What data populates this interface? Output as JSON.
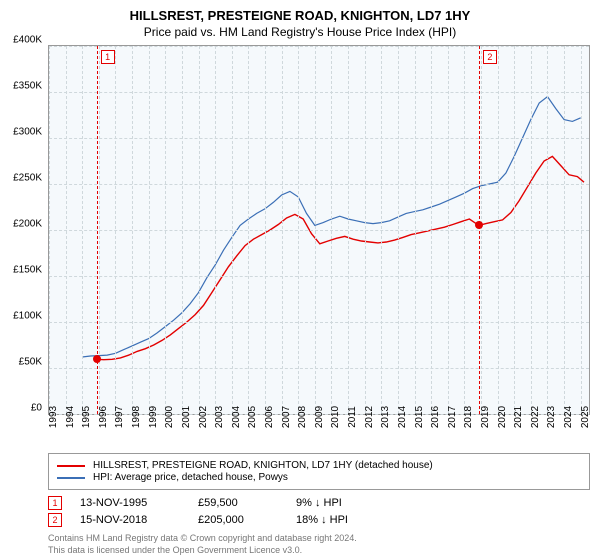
{
  "titles": {
    "line1": "HILLSREST, PRESTEIGNE ROAD, KNIGHTON, LD7 1HY",
    "line2": "Price paid vs. HM Land Registry's House Price Index (HPI)"
  },
  "chart": {
    "type": "line",
    "background_color": "#f5f9fc",
    "grid_color": "#cfd8dc",
    "border_color": "#999999",
    "ylim": [
      0,
      400000
    ],
    "yticks": [
      0,
      50000,
      100000,
      150000,
      200000,
      250000,
      300000,
      350000,
      400000
    ],
    "ytick_labels": [
      "£0",
      "£50K",
      "£100K",
      "£150K",
      "£200K",
      "£250K",
      "£300K",
      "£350K",
      "£400K"
    ],
    "xlim": [
      1993,
      2025.5
    ],
    "xticks": [
      1993,
      1994,
      1995,
      1996,
      1997,
      1998,
      1999,
      2000,
      2001,
      2002,
      2003,
      2004,
      2005,
      2006,
      2007,
      2008,
      2009,
      2010,
      2011,
      2012,
      2013,
      2014,
      2015,
      2016,
      2017,
      2018,
      2019,
      2020,
      2021,
      2022,
      2023,
      2024,
      2025
    ],
    "axis_fontsize": 10,
    "title_fontsize": 13,
    "series": [
      {
        "id": "hpi",
        "label": "HPI: Average price, detached house, Powys",
        "color": "#3b6fb6",
        "line_width": 1.2,
        "points": [
          [
            1995.0,
            62000
          ],
          [
            1995.5,
            63000
          ],
          [
            1996.0,
            63500
          ],
          [
            1996.5,
            64000
          ],
          [
            1997.0,
            66000
          ],
          [
            1997.5,
            70000
          ],
          [
            1998.0,
            74000
          ],
          [
            1998.5,
            78000
          ],
          [
            1999.0,
            82000
          ],
          [
            1999.5,
            88000
          ],
          [
            2000.0,
            95000
          ],
          [
            2000.5,
            102000
          ],
          [
            2001.0,
            110000
          ],
          [
            2001.5,
            120000
          ],
          [
            2002.0,
            132000
          ],
          [
            2002.5,
            148000
          ],
          [
            2003.0,
            162000
          ],
          [
            2003.5,
            178000
          ],
          [
            2004.0,
            192000
          ],
          [
            2004.5,
            205000
          ],
          [
            2005.0,
            212000
          ],
          [
            2005.5,
            218000
          ],
          [
            2006.0,
            223000
          ],
          [
            2006.5,
            230000
          ],
          [
            2007.0,
            238000
          ],
          [
            2007.5,
            242000
          ],
          [
            2008.0,
            236000
          ],
          [
            2008.5,
            218000
          ],
          [
            2009.0,
            205000
          ],
          [
            2009.5,
            208000
          ],
          [
            2010.0,
            212000
          ],
          [
            2010.5,
            215000
          ],
          [
            2011.0,
            212000
          ],
          [
            2011.5,
            210000
          ],
          [
            2012.0,
            208000
          ],
          [
            2012.5,
            207000
          ],
          [
            2013.0,
            208000
          ],
          [
            2013.5,
            210000
          ],
          [
            2014.0,
            214000
          ],
          [
            2014.5,
            218000
          ],
          [
            2015.0,
            220000
          ],
          [
            2015.5,
            222000
          ],
          [
            2016.0,
            225000
          ],
          [
            2016.5,
            228000
          ],
          [
            2017.0,
            232000
          ],
          [
            2017.5,
            236000
          ],
          [
            2018.0,
            240000
          ],
          [
            2018.5,
            245000
          ],
          [
            2019.0,
            248000
          ],
          [
            2019.5,
            250000
          ],
          [
            2020.0,
            252000
          ],
          [
            2020.5,
            262000
          ],
          [
            2021.0,
            280000
          ],
          [
            2021.5,
            300000
          ],
          [
            2022.0,
            320000
          ],
          [
            2022.5,
            338000
          ],
          [
            2023.0,
            345000
          ],
          [
            2023.5,
            332000
          ],
          [
            2024.0,
            320000
          ],
          [
            2024.5,
            318000
          ],
          [
            2025.0,
            322000
          ]
        ]
      },
      {
        "id": "red",
        "label": "HILLSREST, PRESTEIGNE ROAD, KNIGHTON, LD7 1HY (detached house)",
        "color": "#e30000",
        "line_width": 1.4,
        "points": [
          [
            1995.87,
            59500
          ],
          [
            1996.3,
            59000
          ],
          [
            1996.8,
            59500
          ],
          [
            1997.3,
            61000
          ],
          [
            1997.8,
            64000
          ],
          [
            1998.3,
            68000
          ],
          [
            1998.8,
            71000
          ],
          [
            1999.3,
            75000
          ],
          [
            1999.8,
            80000
          ],
          [
            2000.3,
            86000
          ],
          [
            2000.8,
            93000
          ],
          [
            2001.3,
            100000
          ],
          [
            2001.8,
            108000
          ],
          [
            2002.3,
            118000
          ],
          [
            2002.8,
            132000
          ],
          [
            2003.3,
            146000
          ],
          [
            2003.8,
            160000
          ],
          [
            2004.3,
            172000
          ],
          [
            2004.8,
            183000
          ],
          [
            2005.3,
            190000
          ],
          [
            2005.8,
            195000
          ],
          [
            2006.3,
            200000
          ],
          [
            2006.8,
            206000
          ],
          [
            2007.3,
            213000
          ],
          [
            2007.8,
            217000
          ],
          [
            2008.3,
            212000
          ],
          [
            2008.8,
            196000
          ],
          [
            2009.3,
            185000
          ],
          [
            2009.8,
            188000
          ],
          [
            2010.3,
            191000
          ],
          [
            2010.8,
            193000
          ],
          [
            2011.3,
            190000
          ],
          [
            2011.8,
            188000
          ],
          [
            2012.3,
            187000
          ],
          [
            2012.8,
            186000
          ],
          [
            2013.3,
            187000
          ],
          [
            2013.8,
            189000
          ],
          [
            2014.3,
            192000
          ],
          [
            2014.8,
            195000
          ],
          [
            2015.3,
            197000
          ],
          [
            2015.8,
            199000
          ],
          [
            2016.3,
            201000
          ],
          [
            2016.8,
            203000
          ],
          [
            2017.3,
            206000
          ],
          [
            2017.8,
            209000
          ],
          [
            2018.3,
            212000
          ],
          [
            2018.87,
            205000
          ],
          [
            2019.3,
            207000
          ],
          [
            2019.8,
            209000
          ],
          [
            2020.3,
            211000
          ],
          [
            2020.8,
            219000
          ],
          [
            2021.3,
            232000
          ],
          [
            2021.8,
            247000
          ],
          [
            2022.3,
            262000
          ],
          [
            2022.8,
            275000
          ],
          [
            2023.3,
            280000
          ],
          [
            2023.8,
            270000
          ],
          [
            2024.3,
            260000
          ],
          [
            2024.8,
            258000
          ],
          [
            2025.2,
            252000
          ]
        ]
      }
    ],
    "sale_markers": [
      {
        "n": "1",
        "year": 1995.87,
        "price": 59500,
        "color": "#e30000"
      },
      {
        "n": "2",
        "year": 2018.87,
        "price": 205000,
        "color": "#e30000"
      }
    ]
  },
  "legend": {
    "items": [
      {
        "color": "#e30000",
        "label": "HILLSREST, PRESTEIGNE ROAD, KNIGHTON, LD7 1HY (detached house)"
      },
      {
        "color": "#3b6fb6",
        "label": "HPI: Average price, detached house, Powys"
      }
    ]
  },
  "sales": [
    {
      "n": "1",
      "date": "13-NOV-1995",
      "price": "£59,500",
      "diff": "9% ↓ HPI"
    },
    {
      "n": "2",
      "date": "15-NOV-2018",
      "price": "£205,000",
      "diff": "18% ↓ HPI"
    }
  ],
  "footer": {
    "line1": "Contains HM Land Registry data © Crown copyright and database right 2024.",
    "line2": "This data is licensed under the Open Government Licence v3.0."
  }
}
